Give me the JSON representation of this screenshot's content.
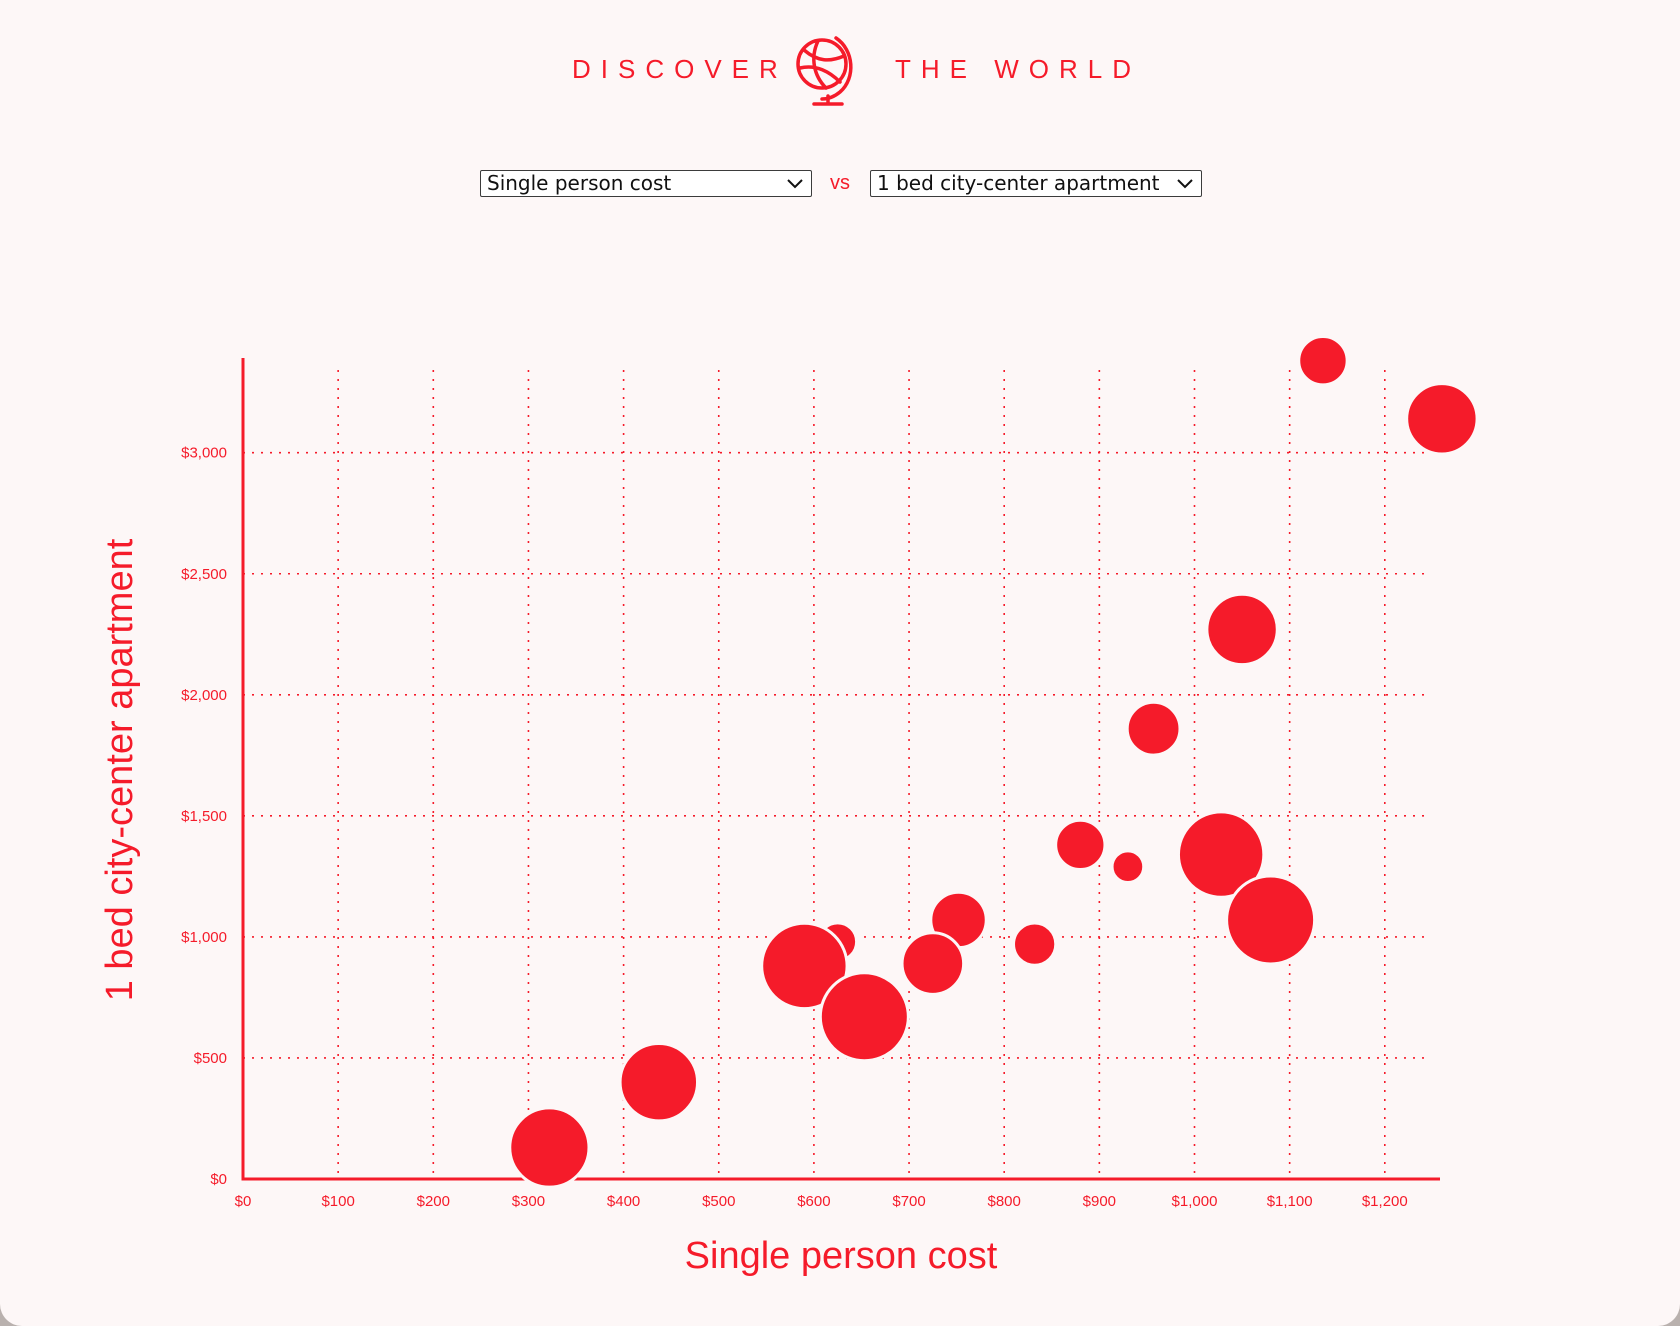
{
  "header": {
    "brand_left": "DISCOVER",
    "brand_right": "THE WORLD",
    "logo_icon": "globe-icon"
  },
  "controls": {
    "x_select": "Single person cost",
    "vs_label": "vs",
    "y_select": "1 bed city-center apartment",
    "chevron_icon": "chevron-down-icon"
  },
  "colors": {
    "accent": "#f51b2a",
    "background": "#fdf7f7"
  },
  "chart_data": {
    "type": "scatter",
    "title": "",
    "xlabel": "Single person cost",
    "ylabel": "1 bed city-center apartment",
    "xlim": [
      0,
      1260
    ],
    "ylim": [
      0,
      3300
    ],
    "x_ticks": [
      0,
      100,
      200,
      300,
      400,
      500,
      600,
      700,
      800,
      900,
      1000,
      1100,
      1200
    ],
    "x_tick_labels": [
      "$0",
      "$100",
      "$200",
      "$300",
      "$400",
      "$500",
      "$600",
      "$700",
      "$800",
      "$900",
      "$1,000",
      "$1,100",
      "$1,200"
    ],
    "y_ticks": [
      0,
      500,
      1000,
      1500,
      2000,
      2500,
      3000
    ],
    "y_tick_labels": [
      "$0",
      "$500",
      "$1,000",
      "$1,500",
      "$2,000",
      "$2,500",
      "$3,000"
    ],
    "grid": true,
    "bubble_size_encoding": "relative",
    "points": [
      {
        "x": 1135,
        "y": 3380,
        "size": 0.55
      },
      {
        "x": 1260,
        "y": 3140,
        "size": 0.8
      },
      {
        "x": 1050,
        "y": 2270,
        "size": 0.8
      },
      {
        "x": 957,
        "y": 1860,
        "size": 0.6
      },
      {
        "x": 880,
        "y": 1380,
        "size": 0.56
      },
      {
        "x": 930,
        "y": 1290,
        "size": 0.36
      },
      {
        "x": 1028,
        "y": 1340,
        "size": 0.97
      },
      {
        "x": 1080,
        "y": 1070,
        "size": 1.0
      },
      {
        "x": 752,
        "y": 1070,
        "size": 0.63
      },
      {
        "x": 832,
        "y": 970,
        "size": 0.48
      },
      {
        "x": 725,
        "y": 890,
        "size": 0.7
      },
      {
        "x": 625,
        "y": 980,
        "size": 0.43
      },
      {
        "x": 590,
        "y": 880,
        "size": 0.97
      },
      {
        "x": 653,
        "y": 670,
        "size": 1.0
      },
      {
        "x": 437,
        "y": 400,
        "size": 0.88
      },
      {
        "x": 322,
        "y": 130,
        "size": 0.9
      }
    ]
  }
}
